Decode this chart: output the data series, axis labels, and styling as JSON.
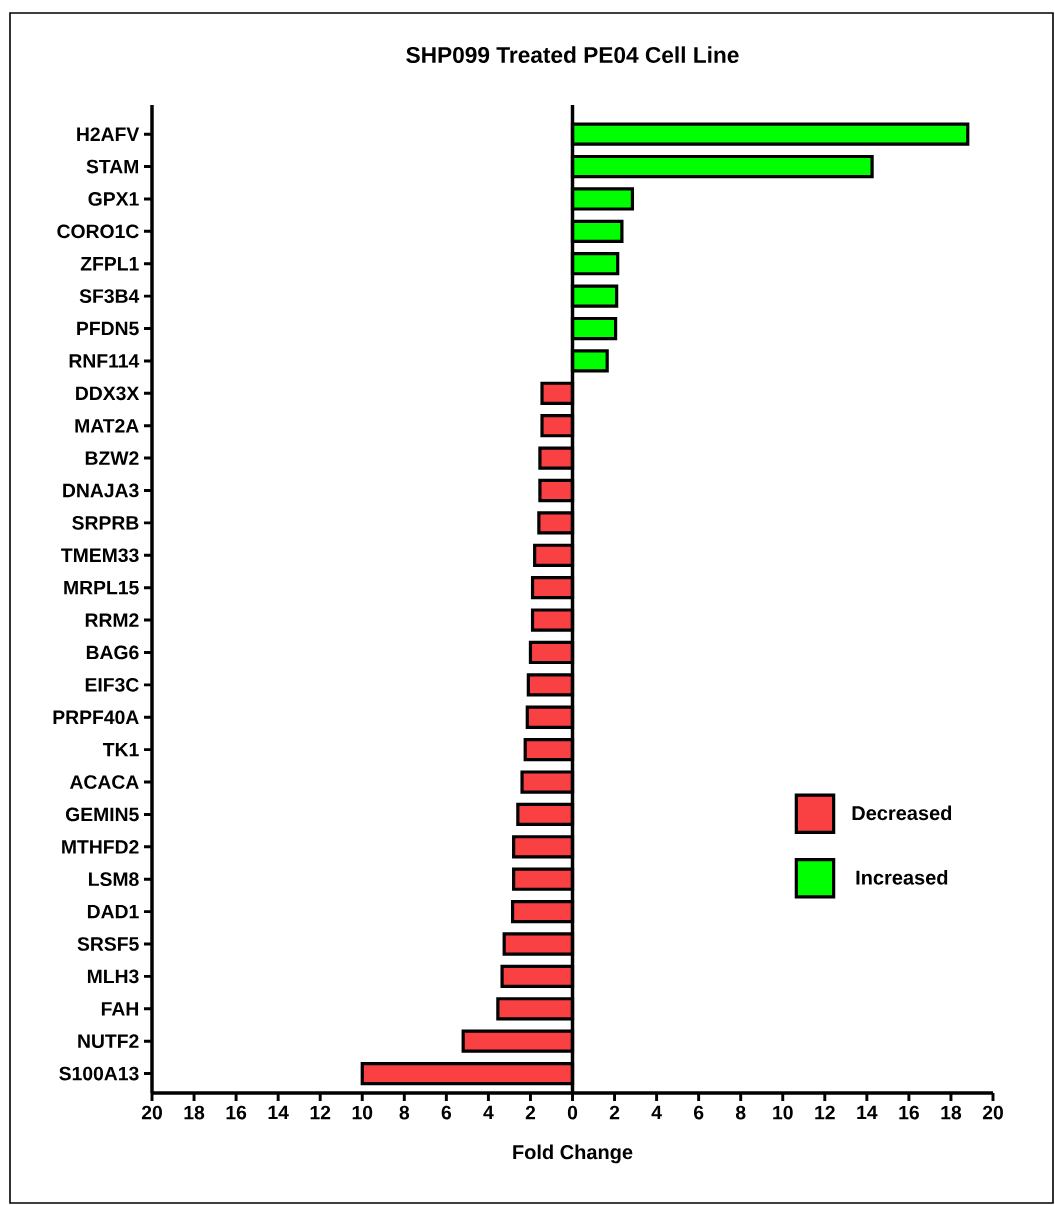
{
  "chart_data": {
    "type": "bar",
    "orientation": "horizontal",
    "title": "SHP099 Treated PE04 Cell Line",
    "xlabel": "Fold Change",
    "categories": [
      "H2AFV",
      "STAM",
      "GPX1",
      "CORO1C",
      "ZFPL1",
      "SF3B4",
      "PFDN5",
      "RNF114",
      "DDX3X",
      "MAT2A",
      "BZW2",
      "DNAJA3",
      "SRPRB",
      "TMEM33",
      "MRPL15",
      "RRM2",
      "BAG6",
      "EIF3C",
      "PRPF40A",
      "TK1",
      "ACACA",
      "GEMIN5",
      "MTHFD2",
      "LSM8",
      "DAD1",
      "SRSF5",
      "MLH3",
      "FAH",
      "NUTF2",
      "S100A13"
    ],
    "series": [
      {
        "name": "Decreased",
        "color": "#f94144",
        "values": [
          null,
          null,
          null,
          null,
          null,
          null,
          null,
          null,
          -1.45,
          -1.45,
          -1.55,
          -1.55,
          -1.6,
          -1.8,
          -1.9,
          -1.9,
          -2.0,
          -2.1,
          -2.15,
          -2.25,
          -2.4,
          -2.6,
          -2.8,
          -2.8,
          -2.85,
          -3.25,
          -3.35,
          -3.55,
          -5.2,
          -10.0
        ]
      },
      {
        "name": "Increased",
        "color": "#00ff00",
        "values": [
          18.8,
          14.25,
          2.85,
          2.35,
          2.15,
          2.1,
          2.05,
          1.65,
          null,
          null,
          null,
          null,
          null,
          null,
          null,
          null,
          null,
          null,
          null,
          null,
          null,
          null,
          null,
          null,
          null,
          null,
          null,
          null,
          null,
          null
        ]
      }
    ],
    "xlim": [
      -20,
      20
    ],
    "xticks": [
      {
        "value": -20,
        "label": "20"
      },
      {
        "value": -18,
        "label": "18"
      },
      {
        "value": -16,
        "label": "16"
      },
      {
        "value": -14,
        "label": "14"
      },
      {
        "value": -12,
        "label": "12"
      },
      {
        "value": -10,
        "label": "10"
      },
      {
        "value": -8,
        "label": "8"
      },
      {
        "value": -6,
        "label": "6"
      },
      {
        "value": -4,
        "label": "4"
      },
      {
        "value": -2,
        "label": "2"
      },
      0,
      2,
      4,
      6,
      8,
      10,
      12,
      14,
      16,
      18,
      20
    ],
    "ref_lines": [
      {
        "axis": "x",
        "value": 0
      }
    ],
    "legend": "right"
  }
}
